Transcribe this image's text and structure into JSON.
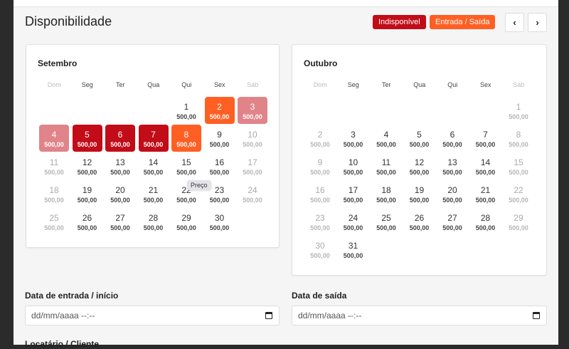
{
  "header": {
    "title": "Disponibilidade"
  },
  "legend": {
    "unavailable": "Indisponível",
    "entry_exit": "Entrada / Saída"
  },
  "nav": {
    "prev": "‹",
    "next": "›"
  },
  "colors": {
    "unavailable": "#c20c17",
    "unavailable_light": "#e0848a",
    "entry_exit": "#ff5f22"
  },
  "weekdays": [
    "Dom",
    "Seg",
    "Ter",
    "Qua",
    "Qui",
    "Sex",
    "Sáb"
  ],
  "months": [
    {
      "name": "Setembro",
      "first_weekday": 4,
      "price": "500,00",
      "days": [
        "1",
        "2",
        "3",
        "4",
        "5",
        "6",
        "7",
        "8",
        "9",
        "10",
        "11",
        "12",
        "13",
        "14",
        "15",
        "16",
        "17",
        "18",
        "19",
        "20",
        "21",
        "22",
        "23",
        "24",
        "25",
        "26",
        "27",
        "28",
        "29",
        "30"
      ],
      "statuses": {
        "2": "entry",
        "3": "unavail-light",
        "4": "unavail-light",
        "5": "unavail",
        "6": "unavail",
        "7": "unavail",
        "8": "entry"
      }
    },
    {
      "name": "Outubro",
      "first_weekday": 6,
      "price": "500,00",
      "days": [
        "1",
        "2",
        "3",
        "4",
        "5",
        "6",
        "7",
        "8",
        "9",
        "10",
        "11",
        "12",
        "13",
        "14",
        "15",
        "16",
        "17",
        "18",
        "19",
        "20",
        "21",
        "22",
        "23",
        "24",
        "25",
        "26",
        "27",
        "28",
        "29",
        "30",
        "31"
      ],
      "statuses": {}
    }
  ],
  "tooltip": "Preço",
  "form": {
    "entry_label": "Data de entrada / início",
    "entry_placeholder": "dd/mm/aaaa --:--",
    "exit_label": "Data de saída",
    "exit_placeholder": "dd/mm/aaaa --:--",
    "tenant_label": "Locatário / Cliente"
  }
}
